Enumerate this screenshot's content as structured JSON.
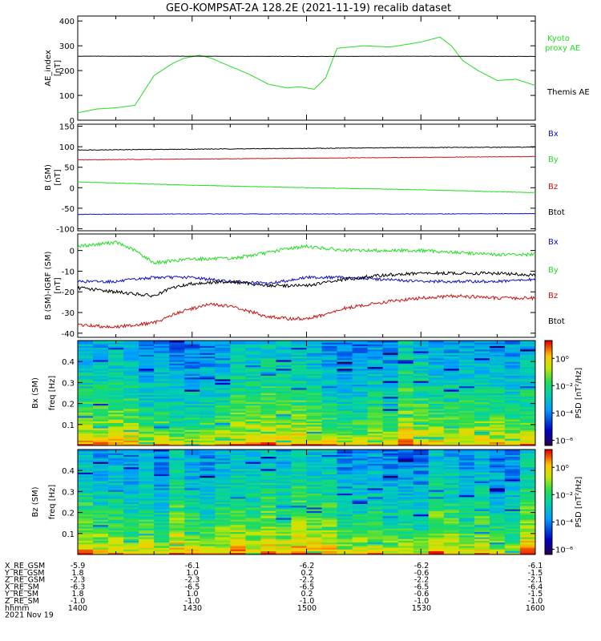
{
  "title": "GEO-KOMPSAT-2A 128.2E (2021-11-19) recalib dataset",
  "colors": {
    "black": "#000000",
    "green": "#22dd22",
    "blue": "#1010c8",
    "red": "#cc1111"
  },
  "chart_data": [
    {
      "type": "line",
      "ylabel": "AE_index [nT]",
      "ylim": [
        0,
        420
      ],
      "yticks": [
        "0",
        "100",
        "200",
        "300",
        "400"
      ],
      "legend": [
        "Kyoto proxy AE",
        "Themis AE"
      ],
      "series": [
        {
          "name": "Kyoto proxy AE",
          "color": "#22dd22",
          "x": [
            0,
            5,
            10,
            15,
            20,
            25,
            28,
            32,
            35,
            38,
            45,
            50,
            55,
            58,
            62,
            65,
            68,
            75,
            82,
            90,
            95,
            98,
            101,
            105,
            110,
            115,
            120
          ],
          "values": [
            30,
            45,
            50,
            60,
            180,
            230,
            250,
            262,
            250,
            230,
            185,
            145,
            130,
            135,
            125,
            170,
            290,
            300,
            295,
            315,
            335,
            300,
            240,
            200,
            160,
            165,
            140
          ]
        },
        {
          "name": "Themis AE",
          "color": "#000000",
          "x": [
            0,
            30,
            60,
            90,
            120
          ],
          "values": [
            258,
            258,
            257,
            258,
            257
          ]
        }
      ]
    },
    {
      "type": "line",
      "ylabel": "B (SM) [nT]",
      "ylim": [
        -105,
        155
      ],
      "yticks": [
        "-100",
        "-50",
        "0",
        "50",
        "100",
        "150"
      ],
      "legend": [
        "Bx",
        "By",
        "Bz",
        "Btot"
      ],
      "series": [
        {
          "name": "Btot",
          "color": "#000000",
          "x": [
            0,
            30,
            60,
            90,
            120
          ],
          "values": [
            92,
            94,
            96,
            98,
            99
          ]
        },
        {
          "name": "Bz",
          "color": "#cc1111",
          "x": [
            0,
            30,
            60,
            90,
            120
          ],
          "values": [
            68,
            70,
            72,
            74,
            76
          ]
        },
        {
          "name": "By",
          "color": "#22dd22",
          "x": [
            0,
            30,
            60,
            90,
            120
          ],
          "values": [
            14,
            6,
            0,
            -5,
            -12
          ]
        },
        {
          "name": "Bx",
          "color": "#1010c8",
          "x": [
            0,
            30,
            60,
            90,
            120
          ],
          "values": [
            -65,
            -64,
            -64,
            -64,
            -63
          ]
        }
      ]
    },
    {
      "type": "line",
      "ylabel": "B (SM)-IGRF (SM) [nT]",
      "ylim": [
        -42,
        8
      ],
      "yticks": [
        "-40",
        "-30",
        "-20",
        "-10",
        "0"
      ],
      "legend": [
        "Bx",
        "By",
        "Bz",
        "Btot"
      ],
      "series": [
        {
          "name": "By",
          "color": "#22dd22",
          "x": [
            0,
            10,
            15,
            20,
            25,
            30,
            40,
            50,
            55,
            60,
            65,
            70,
            80,
            90,
            100,
            110,
            120
          ],
          "values": [
            2,
            4,
            0,
            -6,
            -5,
            -4,
            -4,
            -1,
            1,
            2,
            1,
            0,
            0,
            0,
            -1,
            -2,
            -2
          ]
        },
        {
          "name": "Bx",
          "color": "#1010c8",
          "x": [
            0,
            10,
            20,
            30,
            40,
            50,
            60,
            70,
            80,
            90,
            100,
            110,
            120
          ],
          "values": [
            -15,
            -15,
            -13,
            -13,
            -15,
            -16,
            -13,
            -13,
            -14,
            -15,
            -15,
            -15,
            -14
          ]
        },
        {
          "name": "Btot",
          "color": "#000000",
          "x": [
            0,
            10,
            20,
            25,
            30,
            40,
            50,
            60,
            70,
            80,
            90,
            100,
            110,
            120
          ],
          "values": [
            -18,
            -20,
            -22,
            -18,
            -16,
            -15,
            -17,
            -17,
            -14,
            -12,
            -11,
            -11,
            -11,
            -12
          ]
        },
        {
          "name": "Bz",
          "color": "#cc1111",
          "x": [
            0,
            10,
            20,
            25,
            30,
            35,
            40,
            50,
            55,
            60,
            65,
            70,
            80,
            90,
            100,
            110,
            120
          ],
          "values": [
            -36,
            -37,
            -35,
            -31,
            -28,
            -26,
            -27,
            -32,
            -33,
            -33,
            -31,
            -28,
            -25,
            -23,
            -22,
            -23,
            -23
          ]
        }
      ]
    },
    {
      "type": "heatmap",
      "ylabel": "Bx (SM) freq [Hz]",
      "ylim": [
        0,
        0.5
      ],
      "yticks": [
        "0.1",
        "0.2",
        "0.3",
        "0.4"
      ],
      "colorbar": {
        "label": "PSD [nT²/Hz]",
        "ticks": [
          "10⁰",
          "10⁻²",
          "10⁻⁴",
          "10⁻⁶"
        ]
      }
    },
    {
      "type": "heatmap",
      "ylabel": "Bz (SM) freq [Hz]",
      "ylim": [
        0,
        0.5
      ],
      "yticks": [
        "0.1",
        "0.2",
        "0.3",
        "0.4"
      ],
      "colorbar": {
        "label": "PSD [nT²/Hz]",
        "ticks": [
          "10⁰",
          "10⁻²",
          "10⁻⁴",
          "10⁻⁶"
        ]
      }
    }
  ],
  "legend_labels": {
    "kyoto": "Kyoto proxy AE",
    "themis": "Themis AE",
    "bx": "Bx",
    "by": "By",
    "bz": "Bz",
    "btot": "Btot"
  },
  "orbit_table": {
    "labels": [
      "X_RE_GSM",
      "Y_RE_GSM",
      "Z_RE_GSM",
      "X_RE_SM",
      "Y_RE_SM",
      "Z_RE_SM",
      "hhmm"
    ],
    "columns": [
      [
        "-5.9",
        "1.8",
        "-2.3",
        "-6.3",
        "1.8",
        "-1.0",
        "1400"
      ],
      [
        "-6.1",
        "1.0",
        "-2.3",
        "-6.5",
        "1.0",
        "-1.0",
        "1430"
      ],
      [
        "-6.2",
        "0.2",
        "-2.2",
        "-6.5",
        "0.2",
        "-1.0",
        "1500"
      ],
      [
        "-6.2",
        "-0.6",
        "-2.2",
        "-6.5",
        "-0.6",
        "-1.0",
        "1530"
      ],
      [
        "-6.1",
        "-1.5",
        "-2.1",
        "-6.4",
        "-1.5",
        "-1.0",
        "1600"
      ]
    ],
    "date": "2021 Nov 19"
  }
}
